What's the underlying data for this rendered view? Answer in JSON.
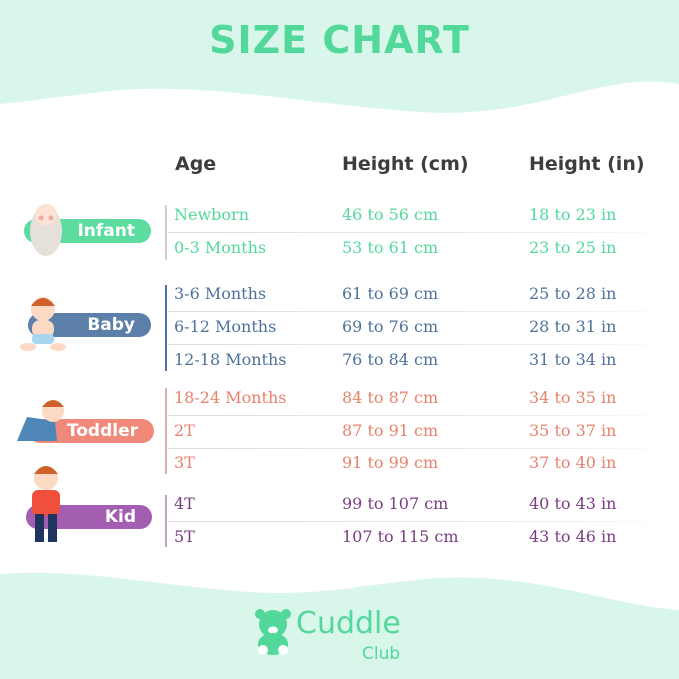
{
  "title": "SIZE CHART",
  "headers": {
    "age": "Age",
    "cm": "Height (cm)",
    "in": "Height (in)"
  },
  "colors": {
    "infant": "#52d89b",
    "baby": "#4f729a",
    "toddler": "#e8806d",
    "kid": "#7a3c83",
    "background": "#d9f6ea"
  },
  "groups": [
    {
      "label": "Infant",
      "pill_color": "#5ddc9f"
    },
    {
      "label": "Baby",
      "pill_color": "#5b7fa9"
    },
    {
      "label": "Toddler",
      "pill_color": "#f1897a"
    },
    {
      "label": "Kid",
      "pill_color": "#a35db1"
    }
  ],
  "rows": [
    {
      "age": "Newborn",
      "cm": "46 to 56 cm",
      "in": "18 to 23 in",
      "group": "infant"
    },
    {
      "age": "0-3 Months",
      "cm": "53 to 61 cm",
      "in": "23 to 25 in",
      "group": "infant"
    },
    {
      "age": "3-6 Months",
      "cm": "61 to 69 cm",
      "in": "25 to 28 in",
      "group": "baby"
    },
    {
      "age": "6-12 Months",
      "cm": "69 to 76 cm",
      "in": "28 to 31 in",
      "group": "baby"
    },
    {
      "age": "12-18 Months",
      "cm": "76 to 84 cm",
      "in": "31 to 34 in",
      "group": "baby"
    },
    {
      "age": "18-24 Months",
      "cm": "84 to 87 cm",
      "in": "34 to 35 in",
      "group": "toddler"
    },
    {
      "age": "2T",
      "cm": "87 to 91 cm",
      "in": "35 to 37 in",
      "group": "toddler"
    },
    {
      "age": "3T",
      "cm": "91 to 99 cm",
      "in": "37 to 40 in",
      "group": "toddler"
    },
    {
      "age": "4T",
      "cm": "99 to 107 cm",
      "in": "40 to 43 in",
      "group": "kid"
    },
    {
      "age": "5T",
      "cm": "107 to 115 cm",
      "in": "43 to 46 in",
      "group": "kid"
    }
  ],
  "logo": {
    "name": "Cuddle",
    "sub": "Club"
  }
}
